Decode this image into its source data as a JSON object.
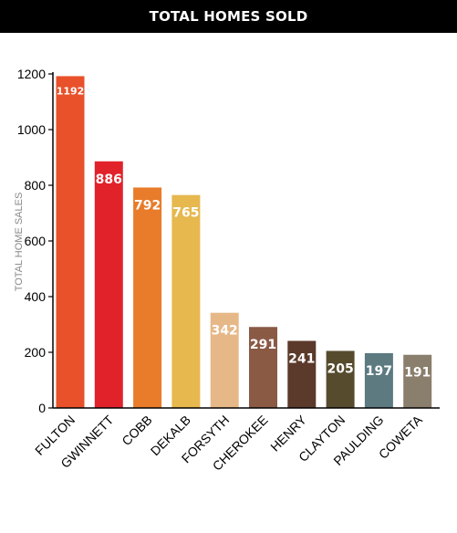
{
  "header": {
    "title": "TOTAL HOMES SOLD"
  },
  "chart_data": {
    "type": "bar",
    "title": "TOTAL HOMES SOLD",
    "xlabel": "",
    "ylabel": "TOTAL HOME SALES",
    "ylim": [
      0,
      1200
    ],
    "yticks": [
      0,
      200,
      400,
      600,
      800,
      1000,
      1200
    ],
    "grid": false,
    "categories": [
      "FULTON",
      "GWINNETT",
      "COBB",
      "DEKALB",
      "FORSYTH",
      "CHEROKEE",
      "HENRY",
      "CLAYTON",
      "PAULDING",
      "COWETA"
    ],
    "values": [
      1192,
      886,
      792,
      765,
      342,
      291,
      241,
      205,
      197,
      191
    ],
    "data_labels": [
      "1192",
      "886",
      "792",
      "765",
      "342",
      "291",
      "241",
      "205",
      "197",
      "191"
    ],
    "colors": [
      "#E8512A",
      "#E2222B",
      "#E87C2A",
      "#E6B84D",
      "#E6B888",
      "#8A5A45",
      "#5B3A2B",
      "#574B2E",
      "#5C7A80",
      "#8A7E6C"
    ]
  }
}
